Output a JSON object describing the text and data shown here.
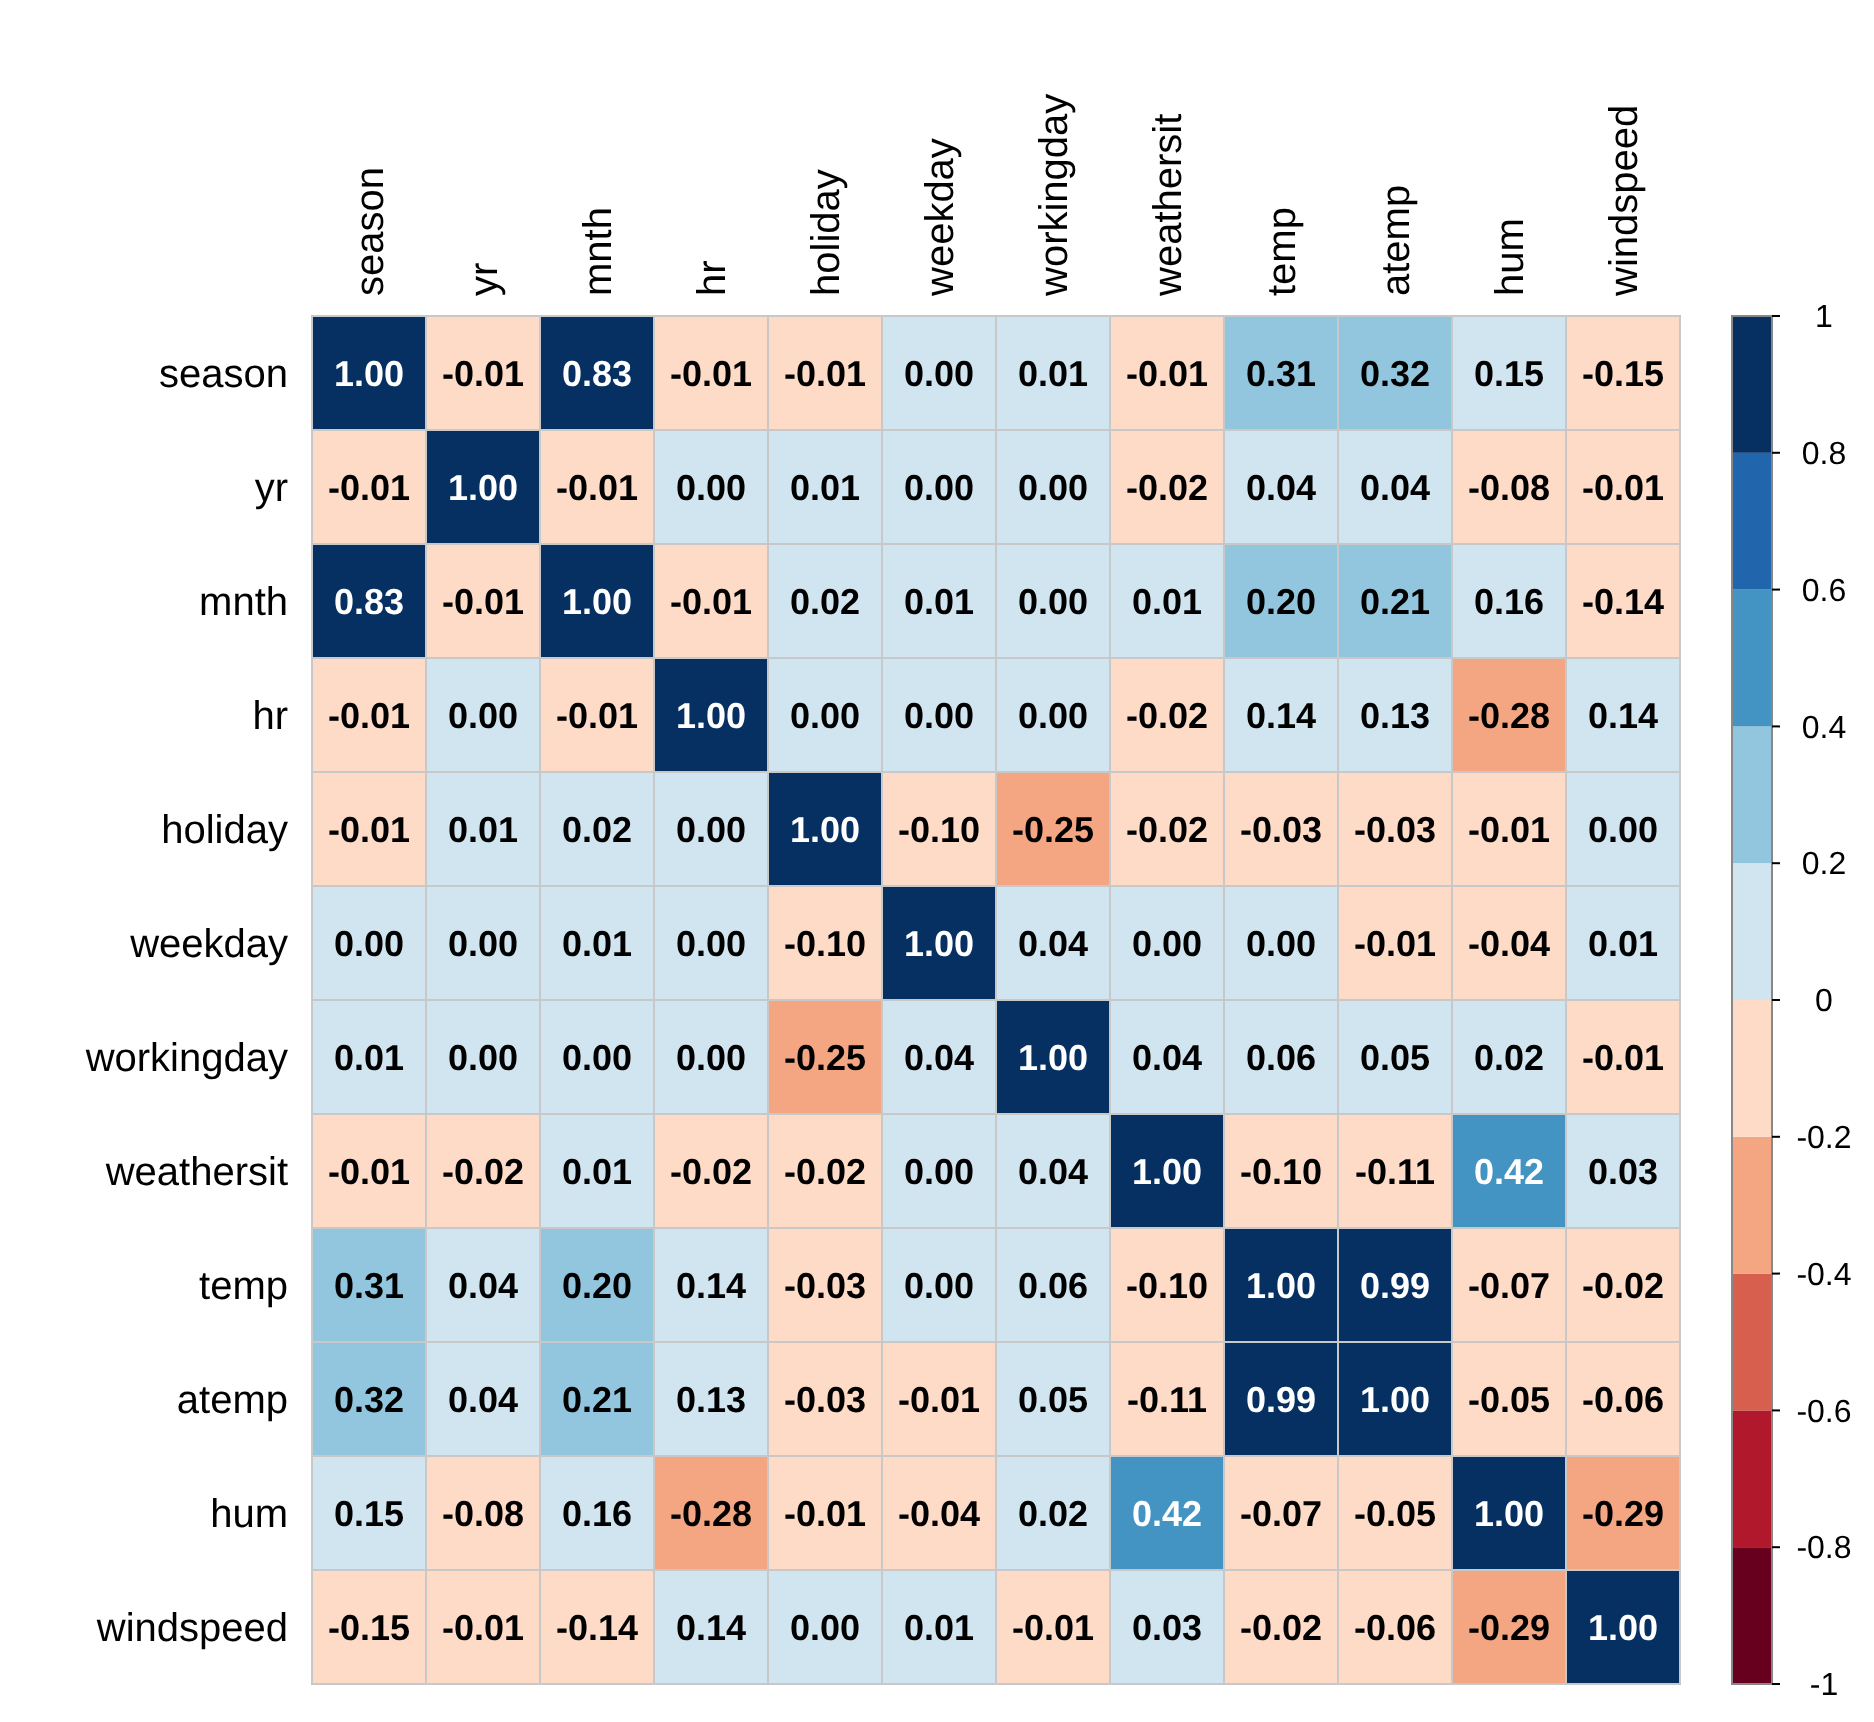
{
  "chart_data": {
    "type": "heatmap",
    "categories": [
      "season",
      "yr",
      "mnth",
      "hr",
      "holiday",
      "weekday",
      "workingday",
      "weathersit",
      "temp",
      "atemp",
      "hum",
      "windspeed"
    ],
    "y_categories": [
      "season",
      "yr",
      "mnth",
      "hr",
      "holiday",
      "weekday",
      "workingday",
      "weathersit",
      "temp",
      "atemp",
      "hum",
      "windspeed"
    ],
    "cells": [
      [
        1.0,
        -0.01,
        0.83,
        -0.01,
        -0.01,
        0.0,
        0.01,
        -0.01,
        0.31,
        0.32,
        0.15,
        -0.15
      ],
      [
        -0.01,
        1.0,
        -0.01,
        0.0,
        0.01,
        0.0,
        0.0,
        -0.02,
        0.04,
        0.04,
        -0.08,
        -0.01
      ],
      [
        0.83,
        -0.01,
        1.0,
        -0.01,
        0.02,
        0.01,
        0.0,
        0.01,
        0.2,
        0.21,
        0.16,
        -0.14
      ],
      [
        -0.01,
        0.0,
        -0.01,
        1.0,
        0.0,
        0.0,
        0.0,
        -0.02,
        0.14,
        0.13,
        -0.28,
        0.14
      ],
      [
        -0.01,
        0.01,
        0.02,
        0.0,
        1.0,
        -0.1,
        -0.25,
        -0.02,
        -0.03,
        -0.03,
        -0.01,
        0.0
      ],
      [
        0.0,
        0.0,
        0.01,
        0.0,
        -0.1,
        1.0,
        0.04,
        0.0,
        0.0,
        -0.01,
        -0.04,
        0.01
      ],
      [
        0.01,
        0.0,
        0.0,
        0.0,
        -0.25,
        0.04,
        1.0,
        0.04,
        0.06,
        0.05,
        0.02,
        -0.01
      ],
      [
        -0.01,
        -0.02,
        0.01,
        -0.02,
        -0.02,
        0.0,
        0.04,
        1.0,
        -0.1,
        -0.11,
        0.42,
        0.03
      ],
      [
        0.31,
        0.04,
        0.2,
        0.14,
        -0.03,
        0.0,
        0.06,
        -0.1,
        1.0,
        0.99,
        -0.07,
        -0.02
      ],
      [
        0.32,
        0.04,
        0.21,
        0.13,
        -0.03,
        -0.01,
        0.05,
        -0.11,
        0.99,
        1.0,
        -0.05,
        -0.06
      ],
      [
        0.15,
        -0.08,
        0.16,
        -0.28,
        -0.01,
        -0.04,
        0.02,
        0.42,
        -0.07,
        -0.05,
        1.0,
        -0.29
      ],
      [
        -0.15,
        -0.01,
        -0.14,
        0.14,
        0.0,
        0.01,
        -0.01,
        0.03,
        -0.02,
        -0.06,
        -0.29,
        1.0
      ]
    ],
    "cell_labels": [
      [
        "1.00",
        "-0.01",
        "0.83",
        "-0.01",
        "-0.01",
        "0.00",
        "0.01",
        "-0.01",
        "0.31",
        "0.32",
        "0.15",
        "-0.15"
      ],
      [
        "-0.01",
        "1.00",
        "-0.01",
        "0.00",
        "0.01",
        "0.00",
        "0.00",
        "-0.02",
        "0.04",
        "0.04",
        "-0.08",
        "-0.01"
      ],
      [
        "0.83",
        "-0.01",
        "1.00",
        "-0.01",
        "0.02",
        "0.01",
        "0.00",
        "0.01",
        "0.20",
        "0.21",
        "0.16",
        "-0.14"
      ],
      [
        "-0.01",
        "0.00",
        "-0.01",
        "1.00",
        "0.00",
        "0.00",
        "0.00",
        "-0.02",
        "0.14",
        "0.13",
        "-0.28",
        "0.14"
      ],
      [
        "-0.01",
        "0.01",
        "0.02",
        "0.00",
        "1.00",
        "-0.10",
        "-0.25",
        "-0.02",
        "-0.03",
        "-0.03",
        "-0.01",
        "0.00"
      ],
      [
        "0.00",
        "0.00",
        "0.01",
        "0.00",
        "-0.10",
        "1.00",
        "0.04",
        "0.00",
        "0.00",
        "-0.01",
        "-0.04",
        "0.01"
      ],
      [
        "0.01",
        "0.00",
        "0.00",
        "0.00",
        "-0.25",
        "0.04",
        "1.00",
        "0.04",
        "0.06",
        "0.05",
        "0.02",
        "-0.01"
      ],
      [
        "-0.01",
        "-0.02",
        "0.01",
        "-0.02",
        "-0.02",
        "0.00",
        "0.04",
        "1.00",
        "-0.10",
        "-0.11",
        "0.42",
        "0.03"
      ],
      [
        "0.31",
        "0.04",
        "0.20",
        "0.14",
        "-0.03",
        "0.00",
        "0.06",
        "-0.10",
        "1.00",
        "0.99",
        "-0.07",
        "-0.02"
      ],
      [
        "0.32",
        "0.04",
        "0.21",
        "0.13",
        "-0.03",
        "-0.01",
        "0.05",
        "-0.11",
        "0.99",
        "1.00",
        "-0.05",
        "-0.06"
      ],
      [
        "0.15",
        "-0.08",
        "0.16",
        "-0.28",
        "-0.01",
        "-0.04",
        "0.02",
        "0.42",
        "-0.07",
        "-0.05",
        "1.00",
        "-0.29"
      ],
      [
        "-0.15",
        "-0.01",
        "-0.14",
        "0.14",
        "0.00",
        "0.01",
        "-0.01",
        "0.03",
        "-0.02",
        "-0.06",
        "-0.29",
        "1.00"
      ]
    ],
    "data_labels": true,
    "clim": [
      -1,
      1
    ],
    "cticks": [
      -1,
      -0.8,
      -0.6,
      -0.4,
      -0.2,
      0,
      0.2,
      0.4,
      0.6,
      0.8,
      1
    ],
    "colors": [
      "#67001f",
      "#b2182b",
      "#d6604d",
      "#f4a582",
      "#fddbc7",
      "#d1e5f0",
      "#92c5de",
      "#4393c3",
      "#2166ac",
      "#053061"
    ]
  }
}
